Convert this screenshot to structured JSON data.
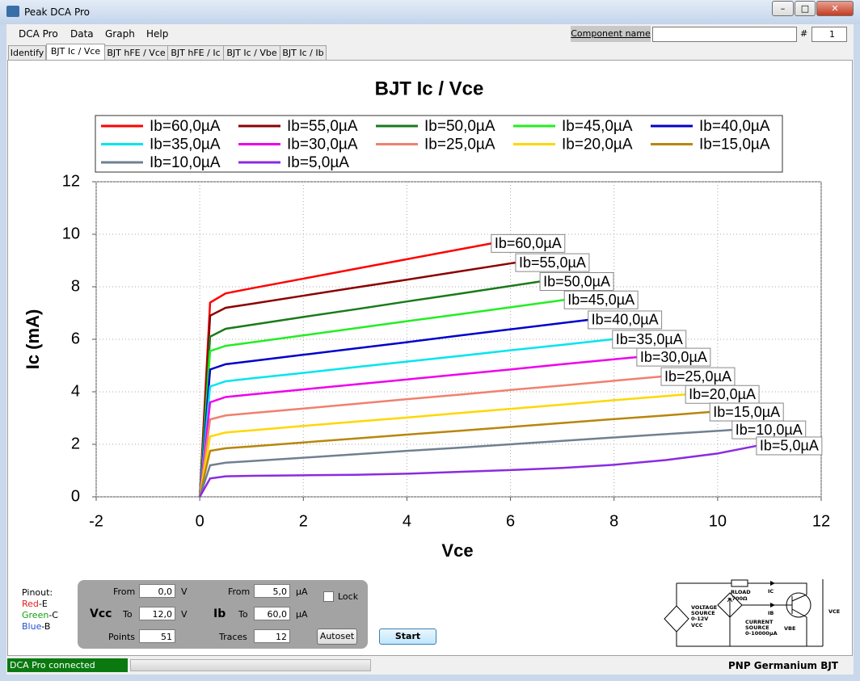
{
  "window": {
    "title": "Peak DCA Pro"
  },
  "menu": [
    "DCA Pro",
    "Data",
    "Graph",
    "Help"
  ],
  "component": {
    "label": "Component name",
    "value": "",
    "number_label": "#",
    "number": "1"
  },
  "tabs": [
    "Identify",
    "BJT Ic / Vce",
    "BJT hFE / Vce",
    "BJT hFE / Ic",
    "BJT Ic / Vbe",
    "BJT Ic / Ib"
  ],
  "chart_data": {
    "type": "line",
    "title": "BJT Ic / Vce",
    "x_label": "Vce",
    "y_label": "Ic (mA)",
    "xlim": [
      -2,
      12
    ],
    "xticks": [
      -2,
      0,
      2,
      4,
      6,
      8,
      10,
      12
    ],
    "ylim": [
      0,
      12
    ],
    "yticks": [
      0,
      2,
      4,
      6,
      8,
      10,
      12
    ],
    "grid": true,
    "legend": "top",
    "series": [
      {
        "name": "Ib=60,0µA",
        "color": "#ff0000",
        "x": [
          0,
          0.1,
          0.2,
          0.5,
          1,
          2,
          3,
          4,
          5,
          5.63
        ],
        "values": [
          0,
          3.7,
          7.4,
          7.75,
          7.94,
          8.31,
          8.68,
          9.05,
          9.42,
          9.65
        ]
      },
      {
        "name": "Ib=55,0µA",
        "color": "#8b0000",
        "x": [
          0,
          0.1,
          0.2,
          0.5,
          1,
          2,
          3,
          4,
          5,
          6,
          6.1
        ],
        "values": [
          0,
          3.4,
          6.9,
          7.2,
          7.35,
          7.66,
          7.97,
          8.27,
          8.58,
          8.89,
          8.92
        ]
      },
      {
        "name": "Ib=50,0µA",
        "color": "#1a7a1a",
        "x": [
          0,
          0.1,
          0.2,
          0.5,
          1,
          2,
          3,
          4,
          5,
          6,
          6.57
        ],
        "values": [
          0,
          3,
          6.1,
          6.4,
          6.55,
          6.85,
          7.14,
          7.44,
          7.73,
          8.03,
          8.2
        ]
      },
      {
        "name": "Ib=45,0µA",
        "color": "#22ee22",
        "x": [
          0,
          0.1,
          0.2,
          0.5,
          1,
          2,
          3,
          4,
          5,
          6,
          7,
          7.04
        ],
        "values": [
          0,
          2.7,
          5.55,
          5.75,
          5.88,
          6.15,
          6.42,
          6.69,
          6.95,
          7.22,
          7.49,
          7.5
        ]
      },
      {
        "name": "Ib=40,0µA",
        "color": "#0000cc",
        "x": [
          0,
          0.1,
          0.2,
          0.5,
          1,
          2,
          3,
          4,
          5,
          6,
          7,
          7.5
        ],
        "values": [
          0,
          2.4,
          4.85,
          5.05,
          5.17,
          5.41,
          5.65,
          5.89,
          6.14,
          6.38,
          6.62,
          6.74
        ]
      },
      {
        "name": "Ib=35,0µA",
        "color": "#00e5ee",
        "x": [
          0,
          0.1,
          0.2,
          0.5,
          1,
          2,
          3,
          4,
          5,
          6,
          7,
          7.97
        ],
        "values": [
          0,
          2.1,
          4.2,
          4.4,
          4.51,
          4.72,
          4.94,
          5.15,
          5.36,
          5.58,
          5.79,
          6.0
        ]
      },
      {
        "name": "Ib=30,0µA",
        "color": "#ee00ee",
        "x": [
          0,
          0.1,
          0.2,
          0.5,
          1,
          2,
          3,
          4,
          5,
          6,
          7,
          8,
          8.44
        ],
        "values": [
          0,
          1.8,
          3.6,
          3.8,
          3.9,
          4.09,
          4.28,
          4.47,
          4.66,
          4.85,
          5.05,
          5.24,
          5.32
        ]
      },
      {
        "name": "Ib=25,0µA",
        "color": "#f08070",
        "x": [
          0,
          0.1,
          0.2,
          0.5,
          1,
          2,
          3,
          4,
          5,
          6,
          7,
          8,
          8.91
        ],
        "values": [
          0,
          1.5,
          2.95,
          3.1,
          3.19,
          3.36,
          3.54,
          3.72,
          3.89,
          4.07,
          4.24,
          4.42,
          4.58
        ]
      },
      {
        "name": "Ib=20,0µA",
        "color": "#ffd700",
        "x": [
          0,
          0.1,
          0.2,
          0.5,
          1,
          2,
          3,
          4,
          5,
          6,
          7,
          8,
          9,
          9.38
        ],
        "values": [
          0,
          1.15,
          2.3,
          2.45,
          2.53,
          2.7,
          2.86,
          3.02,
          3.19,
          3.35,
          3.51,
          3.68,
          3.84,
          3.9
        ]
      },
      {
        "name": "Ib=15,0µA",
        "color": "#b8860b",
        "x": [
          0,
          0.1,
          0.2,
          0.5,
          1,
          2,
          3,
          4,
          5,
          6,
          7,
          8,
          9,
          9.85
        ],
        "values": [
          0,
          0.9,
          1.75,
          1.85,
          1.92,
          2.07,
          2.22,
          2.37,
          2.51,
          2.66,
          2.81,
          2.96,
          3.1,
          3.23
        ]
      },
      {
        "name": "Ib=10,0µA",
        "color": "#708090",
        "x": [
          0,
          0.1,
          0.2,
          0.5,
          1,
          2,
          3,
          4,
          5,
          6,
          7,
          8,
          9,
          10,
          10.28
        ],
        "values": [
          0,
          0.6,
          1.2,
          1.3,
          1.36,
          1.49,
          1.62,
          1.75,
          1.87,
          2.0,
          2.13,
          2.26,
          2.39,
          2.51,
          2.55
        ]
      },
      {
        "name": "Ib=5,0µA",
        "color": "#8a2be2",
        "x": [
          0,
          0.1,
          0.2,
          0.5,
          1,
          2,
          3,
          4,
          5,
          6,
          7,
          8,
          9,
          10,
          10.75
        ],
        "values": [
          0,
          0.35,
          0.7,
          0.78,
          0.8,
          0.82,
          0.84,
          0.88,
          0.95,
          1.02,
          1.1,
          1.22,
          1.4,
          1.65,
          1.94
        ]
      }
    ]
  },
  "pinout": {
    "title": "Pinout:",
    "items": [
      {
        "color": "Red",
        "pin": "-E"
      },
      {
        "color": "Green",
        "pin": "-C"
      },
      {
        "color": "Blue",
        "pin": "-B"
      }
    ]
  },
  "controls": {
    "vcc": {
      "label": "Vcc",
      "from_label": "From",
      "from": "0,0",
      "to_label": "To",
      "to": "12,0",
      "unit": "V",
      "points_label": "Points",
      "points": "51"
    },
    "ib": {
      "label": "Ib",
      "from_label": "From",
      "from": "5,0",
      "to_label": "To",
      "to": "60,0",
      "unit": "µA",
      "traces_label": "Traces",
      "traces": "12"
    },
    "lock": "Lock",
    "autoset": "Autoset",
    "start": "Start"
  },
  "circuit": {
    "voltage_source": [
      "VOLTAGE",
      "SOURCE",
      "0-12V",
      "VCC"
    ],
    "rload": "RLOAD",
    "rload_value": "≈700Ω",
    "ic": "IC",
    "ib": "IB",
    "current_source": [
      "CURRENT",
      "SOURCE",
      "0-10000µA"
    ],
    "vbe": "VBE",
    "vce": "VCE"
  },
  "status": {
    "connection": "DCA Pro connected",
    "device": "PNP Germanium BJT"
  }
}
